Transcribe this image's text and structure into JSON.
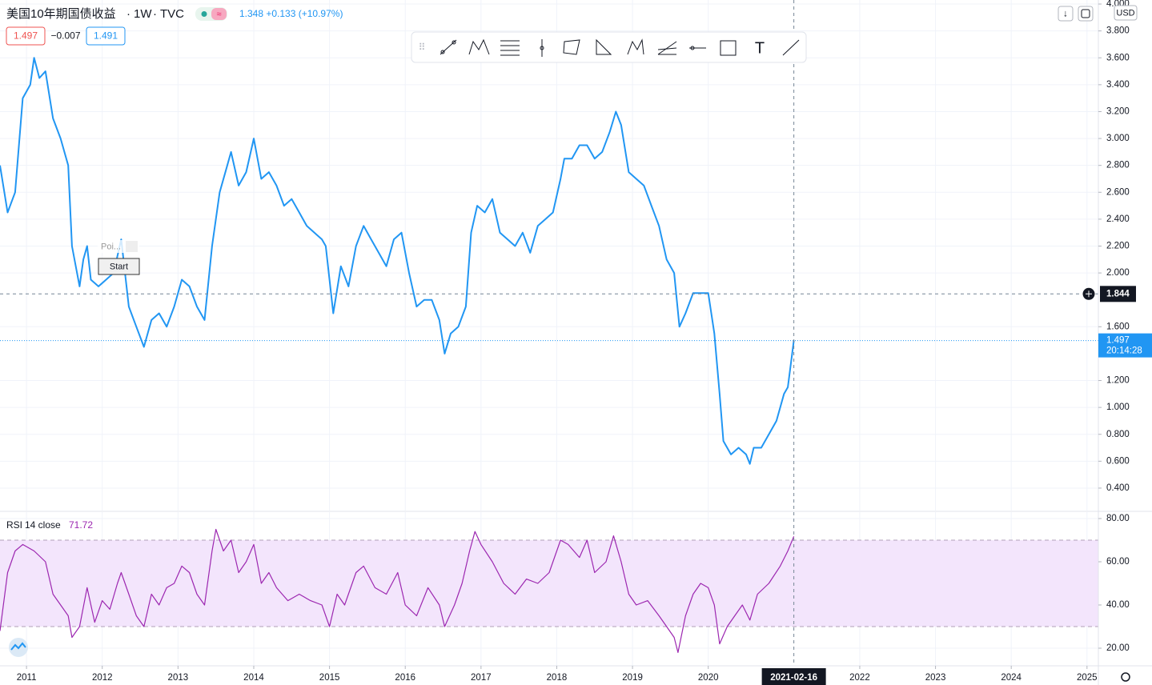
{
  "header": {
    "symbol": "美国10年期国债收益",
    "interval": "1W",
    "source": "TVC",
    "last_change": "1.348 +0.133 (+10.97%)",
    "sell": "1.497",
    "spread": "−0.007",
    "buy": "1.491",
    "currency": "USD",
    "price_time": "20:14:28"
  },
  "overlay": {
    "label": "Poi...",
    "button": "Start"
  },
  "crosshair": {
    "x": 2021.13,
    "x_label": "2021-02-16",
    "y": 1.844
  },
  "chart_data": [
    {
      "type": "line",
      "color": "#2196f3",
      "grid": true,
      "x": [
        2010.65,
        2010.75,
        2010.85,
        2010.95,
        2011.05,
        2011.1,
        2011.17,
        2011.25,
        2011.35,
        2011.45,
        2011.55,
        2011.6,
        2011.7,
        2011.75,
        2011.8,
        2011.85,
        2011.95,
        2012.05,
        2012.15,
        2012.25,
        2012.35,
        2012.45,
        2012.55,
        2012.65,
        2012.75,
        2012.85,
        2012.95,
        2013.05,
        2013.15,
        2013.25,
        2013.35,
        2013.45,
        2013.55,
        2013.65,
        2013.7,
        2013.8,
        2013.9,
        2014.0,
        2014.1,
        2014.2,
        2014.3,
        2014.4,
        2014.5,
        2014.6,
        2014.7,
        2014.8,
        2014.9,
        2014.95,
        2015.05,
        2015.15,
        2015.25,
        2015.35,
        2015.45,
        2015.55,
        2015.65,
        2015.75,
        2015.85,
        2015.95,
        2016.05,
        2016.15,
        2016.25,
        2016.35,
        2016.45,
        2016.52,
        2016.6,
        2016.7,
        2016.8,
        2016.87,
        2016.95,
        2017.05,
        2017.15,
        2017.25,
        2017.35,
        2017.45,
        2017.55,
        2017.65,
        2017.75,
        2017.85,
        2017.95,
        2018.05,
        2018.1,
        2018.2,
        2018.3,
        2018.4,
        2018.5,
        2018.6,
        2018.7,
        2018.78,
        2018.85,
        2018.95,
        2019.05,
        2019.15,
        2019.25,
        2019.35,
        2019.45,
        2019.55,
        2019.62,
        2019.7,
        2019.8,
        2019.9,
        2020.0,
        2020.08,
        2020.15,
        2020.2,
        2020.3,
        2020.4,
        2020.5,
        2020.55,
        2020.6,
        2020.7,
        2020.8,
        2020.9,
        2021.0,
        2021.05,
        2021.13
      ],
      "values": [
        2.8,
        2.45,
        2.6,
        3.3,
        3.4,
        3.6,
        3.45,
        3.5,
        3.15,
        3.0,
        2.8,
        2.2,
        1.9,
        2.1,
        2.2,
        1.95,
        1.9,
        1.95,
        2.0,
        2.25,
        1.75,
        1.6,
        1.45,
        1.65,
        1.7,
        1.6,
        1.75,
        1.95,
        1.9,
        1.75,
        1.65,
        2.2,
        2.6,
        2.8,
        2.9,
        2.65,
        2.75,
        3.0,
        2.7,
        2.75,
        2.65,
        2.5,
        2.55,
        2.45,
        2.35,
        2.3,
        2.25,
        2.2,
        1.7,
        2.05,
        1.9,
        2.2,
        2.35,
        2.25,
        2.15,
        2.05,
        2.25,
        2.3,
        2.0,
        1.75,
        1.8,
        1.8,
        1.65,
        1.4,
        1.55,
        1.6,
        1.75,
        2.3,
        2.5,
        2.45,
        2.55,
        2.3,
        2.25,
        2.2,
        2.3,
        2.15,
        2.35,
        2.4,
        2.45,
        2.7,
        2.85,
        2.85,
        2.95,
        2.95,
        2.85,
        2.9,
        3.05,
        3.2,
        3.1,
        2.75,
        2.7,
        2.65,
        2.5,
        2.35,
        2.1,
        2.0,
        1.6,
        1.7,
        1.85,
        1.85,
        1.85,
        1.55,
        1.1,
        0.75,
        0.65,
        0.7,
        0.65,
        0.58,
        0.7,
        0.7,
        0.8,
        0.9,
        1.1,
        1.15,
        1.497
      ],
      "xlim": [
        2010.65,
        2025.15
      ],
      "xticks": [
        2011,
        2012,
        2013,
        2014,
        2015,
        2016,
        2017,
        2018,
        2019,
        2020,
        2022,
        2023,
        2024,
        2025
      ],
      "ylim": [
        0.233,
        4.03
      ],
      "yticks": [
        {
          "value": 0.4,
          "label": "0.400"
        },
        {
          "value": 0.6,
          "label": "0.600"
        },
        {
          "value": 0.8,
          "label": "0.800"
        },
        {
          "value": 1.0,
          "label": "1.000"
        },
        {
          "value": 1.2,
          "label": "1.200"
        },
        {
          "value": 1.6,
          "label": "1.600"
        },
        {
          "value": 2.0,
          "label": "2.000"
        },
        {
          "value": 2.2,
          "label": "2.200"
        },
        {
          "value": 2.4,
          "label": "2.400"
        },
        {
          "value": 2.6,
          "label": "2.600"
        },
        {
          "value": 2.8,
          "label": "2.800"
        },
        {
          "value": 3.0,
          "label": "3.000"
        },
        {
          "value": 3.2,
          "label": "3.200"
        },
        {
          "value": 3.4,
          "label": "3.400"
        },
        {
          "value": 3.6,
          "label": "3.600"
        },
        {
          "value": 3.8,
          "label": "3.800"
        },
        {
          "value": 4.0,
          "label": "4.000"
        }
      ]
    },
    {
      "type": "line",
      "color": "#9c27b0",
      "name": "RSI",
      "params": "14 close",
      "band_color": "#f3e5fc",
      "bands": [
        30,
        70
      ],
      "x": [
        2010.65,
        2010.75,
        2010.85,
        2010.95,
        2011.1,
        2011.25,
        2011.35,
        2011.45,
        2011.55,
        2011.6,
        2011.7,
        2011.8,
        2011.9,
        2012.0,
        2012.1,
        2012.2,
        2012.25,
        2012.35,
        2012.45,
        2012.55,
        2012.65,
        2012.75,
        2012.85,
        2012.95,
        2013.05,
        2013.15,
        2013.25,
        2013.35,
        2013.45,
        2013.5,
        2013.6,
        2013.7,
        2013.8,
        2013.9,
        2014.0,
        2014.1,
        2014.2,
        2014.3,
        2014.45,
        2014.6,
        2014.75,
        2014.9,
        2015.0,
        2015.1,
        2015.2,
        2015.35,
        2015.45,
        2015.6,
        2015.75,
        2015.9,
        2016.0,
        2016.15,
        2016.3,
        2016.45,
        2016.52,
        2016.65,
        2016.75,
        2016.85,
        2016.92,
        2017.0,
        2017.15,
        2017.3,
        2017.45,
        2017.6,
        2017.75,
        2017.9,
        2018.05,
        2018.15,
        2018.3,
        2018.4,
        2018.5,
        2018.65,
        2018.75,
        2018.85,
        2018.95,
        2019.05,
        2019.2,
        2019.35,
        2019.45,
        2019.55,
        2019.6,
        2019.7,
        2019.8,
        2019.9,
        2020.0,
        2020.08,
        2020.15,
        2020.25,
        2020.35,
        2020.45,
        2020.55,
        2020.65,
        2020.8,
        2020.95,
        2021.05,
        2021.13
      ],
      "values": [
        28,
        55,
        65,
        68,
        65,
        60,
        45,
        40,
        35,
        25,
        30,
        48,
        32,
        42,
        38,
        50,
        55,
        45,
        35,
        30,
        45,
        40,
        48,
        50,
        58,
        55,
        45,
        40,
        65,
        75,
        65,
        70,
        55,
        60,
        68,
        50,
        55,
        48,
        42,
        45,
        42,
        40,
        30,
        45,
        40,
        55,
        58,
        48,
        45,
        55,
        40,
        35,
        48,
        40,
        30,
        40,
        50,
        65,
        74,
        68,
        60,
        50,
        45,
        52,
        50,
        55,
        70,
        68,
        62,
        70,
        55,
        60,
        72,
        60,
        45,
        40,
        42,
        35,
        30,
        25,
        18,
        35,
        45,
        50,
        48,
        40,
        22,
        30,
        35,
        40,
        33,
        45,
        50,
        58,
        65,
        71.72
      ],
      "xlim": [
        2010.65,
        2025.15
      ],
      "ylim": [
        11.85,
        82.96
      ],
      "yticks": [
        {
          "value": 20,
          "label": "20.00"
        },
        {
          "value": 40,
          "label": "40.00"
        },
        {
          "value": 60,
          "label": "60.00"
        },
        {
          "value": 80,
          "label": "80.00"
        }
      ]
    }
  ]
}
